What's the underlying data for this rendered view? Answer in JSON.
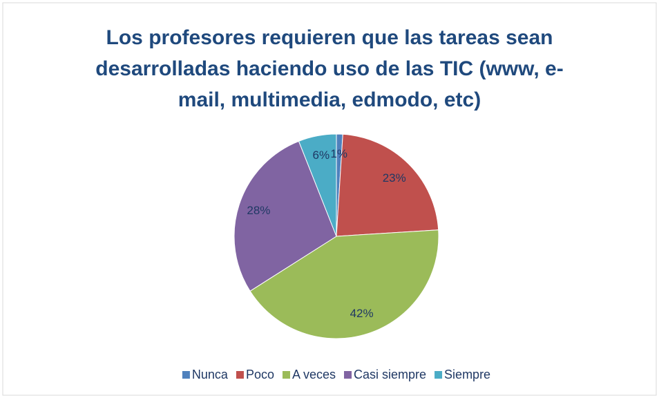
{
  "chart_data": {
    "type": "pie",
    "title": "Los profesores requieren que las tareas sean desarrolladas haciendo uso de las TIC (www, e-mail, multimedia, edmodo, etc)",
    "categories": [
      "Nunca",
      "Poco",
      "A veces",
      "Casi siempre",
      "Siempre"
    ],
    "values": [
      1,
      23,
      42,
      28,
      6
    ],
    "value_labels": [
      "1%",
      "23%",
      "42%",
      "28%",
      "6%"
    ],
    "colors": [
      "#4f81bd",
      "#c0504d",
      "#9bbb59",
      "#8064a2",
      "#4bacc6"
    ],
    "legend": "bottom"
  }
}
